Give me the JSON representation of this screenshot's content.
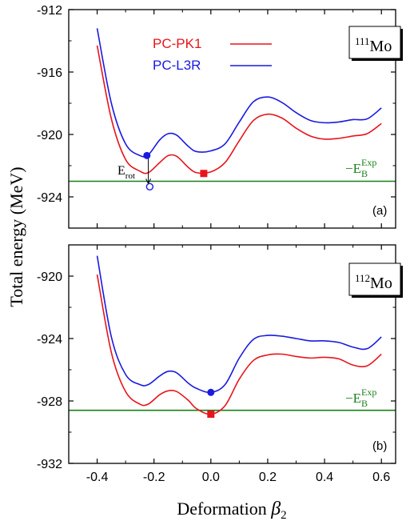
{
  "figure": {
    "ylabel": "Total energy (MeV)",
    "xlabel_text": "Deformation ",
    "xlabel_symbol": "β",
    "xlabel_sub": "2"
  },
  "colors": {
    "pk1": "#e8141c",
    "l3r": "#1a1ae0",
    "exp": "#1a7f1a"
  },
  "legend": [
    {
      "label": "PC-PK1",
      "color": "#e8141c"
    },
    {
      "label": "PC-L3R",
      "color": "#1a1ae0"
    }
  ],
  "exp_label": {
    "prefix": "−E",
    "sub": "B",
    "sup": "Exp"
  },
  "erot_label": {
    "main": "E",
    "sub": "rot"
  },
  "chart_data": [
    {
      "type": "line",
      "panel": "(a)",
      "nucleus": {
        "mass": "111",
        "symbol": "Mo"
      },
      "xlim": [
        -0.5,
        0.65
      ],
      "ylim": [
        -926,
        -912
      ],
      "x_ticks": [
        "-0.4",
        "-0.2",
        "0.0",
        "0.2",
        "0.4",
        "0.6"
      ],
      "y_ticks": [
        "-912",
        "-916",
        "-920",
        "-924"
      ],
      "y_tick_values": [
        -912,
        -916,
        -920,
        -924
      ],
      "exp_energy": -923.0,
      "x": [
        -0.4,
        -0.35,
        -0.3,
        -0.25,
        -0.22,
        -0.18,
        -0.15,
        -0.12,
        -0.08,
        -0.05,
        0.0,
        0.05,
        0.1,
        0.15,
        0.2,
        0.25,
        0.3,
        0.35,
        0.4,
        0.45,
        0.5,
        0.55,
        0.6
      ],
      "series": [
        {
          "name": "PC-PK1",
          "color": "#e8141c",
          "values": [
            -914.3,
            -919.0,
            -921.6,
            -922.35,
            -922.45,
            -921.8,
            -921.35,
            -921.4,
            -922.1,
            -922.45,
            -922.4,
            -921.8,
            -920.4,
            -919.1,
            -918.7,
            -918.95,
            -919.6,
            -920.1,
            -920.3,
            -920.25,
            -920.1,
            -919.95,
            -919.3
          ]
        },
        {
          "name": "PC-L3R",
          "color": "#1a1ae0",
          "values": [
            -913.2,
            -918.0,
            -920.6,
            -921.35,
            -921.3,
            -920.35,
            -919.95,
            -920.05,
            -920.75,
            -921.1,
            -921.05,
            -920.6,
            -919.2,
            -917.9,
            -917.6,
            -917.95,
            -918.6,
            -919.1,
            -919.25,
            -919.2,
            -919.05,
            -919.0,
            -918.3
          ]
        }
      ],
      "markers": [
        {
          "type": "circle-filled",
          "color": "#1a1ae0",
          "x": -0.225,
          "y": -921.35
        },
        {
          "type": "circle-open",
          "color": "#1a1ae0",
          "x": -0.215,
          "y": -923.35
        },
        {
          "type": "square-filled",
          "color": "#e8141c",
          "x": -0.025,
          "y": -922.5
        }
      ],
      "erot_arrow": {
        "x": -0.22,
        "y_from": -921.35,
        "y_to": -923.2
      }
    },
    {
      "type": "line",
      "panel": "(b)",
      "nucleus": {
        "mass": "112",
        "symbol": "Mo"
      },
      "xlim": [
        -0.5,
        0.65
      ],
      "ylim": [
        -932,
        -918
      ],
      "x_ticks": [
        "-0.4",
        "-0.2",
        "0.0",
        "0.2",
        "0.4",
        "0.6"
      ],
      "y_ticks": [
        "-920",
        "-924",
        "-928",
        "-932"
      ],
      "y_tick_values": [
        -920,
        -924,
        -928,
        -932
      ],
      "exp_energy": -928.6,
      "x": [
        -0.4,
        -0.35,
        -0.3,
        -0.25,
        -0.22,
        -0.18,
        -0.15,
        -0.12,
        -0.08,
        -0.05,
        0.0,
        0.05,
        0.1,
        0.15,
        0.2,
        0.25,
        0.3,
        0.35,
        0.4,
        0.45,
        0.5,
        0.55,
        0.6
      ],
      "series": [
        {
          "name": "PC-PK1",
          "color": "#e8141c",
          "values": [
            -919.9,
            -924.9,
            -927.4,
            -928.2,
            -928.2,
            -927.6,
            -927.35,
            -927.4,
            -927.95,
            -928.5,
            -928.85,
            -928.3,
            -926.6,
            -925.4,
            -925.05,
            -925.0,
            -925.15,
            -925.25,
            -925.2,
            -925.3,
            -925.7,
            -925.75,
            -925.0
          ]
        },
        {
          "name": "PC-L3R",
          "color": "#1a1ae0",
          "values": [
            -918.7,
            -923.9,
            -926.3,
            -926.95,
            -926.95,
            -926.4,
            -926.1,
            -926.2,
            -926.85,
            -927.2,
            -927.45,
            -926.95,
            -925.25,
            -924.05,
            -923.8,
            -923.85,
            -924.0,
            -924.15,
            -924.15,
            -924.25,
            -924.55,
            -924.65,
            -923.9
          ]
        }
      ],
      "markers": [
        {
          "type": "circle-filled",
          "color": "#1a1ae0",
          "x": 0.0,
          "y": -927.45
        },
        {
          "type": "square-filled",
          "color": "#e8141c",
          "x": 0.0,
          "y": -928.85
        }
      ]
    }
  ]
}
